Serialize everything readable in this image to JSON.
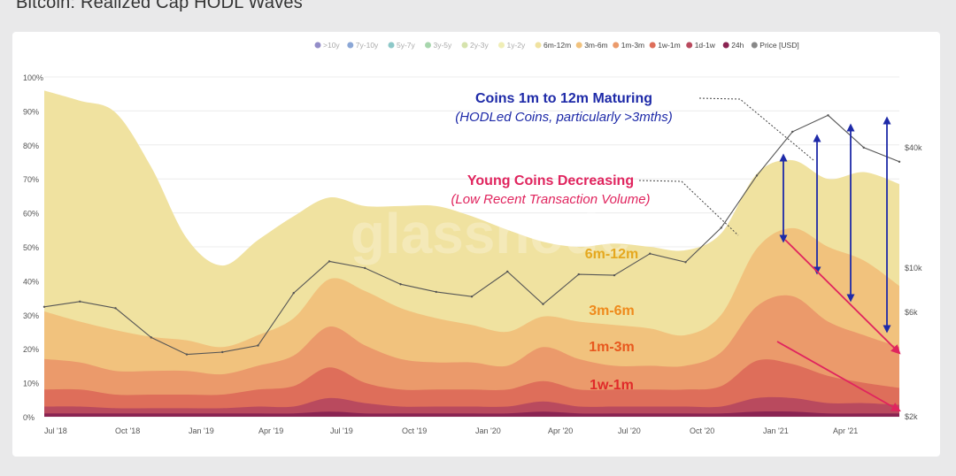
{
  "page": {
    "title": "Bitcoin: Realized Cap HODL Waves"
  },
  "watermark": "glassnode",
  "legend": [
    {
      "label": ">10y",
      "color": "#3b2f9a",
      "visible": false
    },
    {
      "label": "7y-10y",
      "color": "#2b5fb5",
      "visible": false
    },
    {
      "label": "5y-7y",
      "color": "#2f9a9a",
      "visible": false
    },
    {
      "label": "3y-5y",
      "color": "#5fb56a",
      "visible": false
    },
    {
      "label": "2y-3y",
      "color": "#b5cc6a",
      "visible": false
    },
    {
      "label": "1y-2y",
      "color": "#e3e07a",
      "visible": false
    },
    {
      "label": "6m-12m",
      "color": "#f0e2a0",
      "visible": true
    },
    {
      "label": "3m-6m",
      "color": "#f1c27d",
      "visible": true
    },
    {
      "label": "1m-3m",
      "color": "#eb9a6b",
      "visible": true
    },
    {
      "label": "1w-1m",
      "color": "#de6e5a",
      "visible": true
    },
    {
      "label": "1d-1w",
      "color": "#b94a5e",
      "visible": true
    },
    {
      "label": "24h",
      "color": "#8a2452",
      "visible": true
    },
    {
      "label": "Price [USD]",
      "color": "#888888",
      "visible": true
    }
  ],
  "annotations": {
    "maturing_title": "Coins 1m to 12m Maturing",
    "maturing_sub": "(HODLed Coins, particularly >3mths)",
    "young_title": "Young Coins Decreasing",
    "young_sub": "(Low Recent Transaction Volume)",
    "band_6m12m": "6m-12m",
    "band_3m6m": "3m-6m",
    "band_1m3m": "1m-3m",
    "band_1w1m": "1w-1m"
  },
  "colors": {
    "maturing": "#1e2aa8",
    "young": "#e0245e",
    "band_6m12m": "#e5a81f",
    "band_3m6m": "#ef8a1c",
    "band_1m3m": "#e8581e",
    "band_1w1m": "#e02a2a"
  },
  "chart_data": {
    "type": "area",
    "stacked": true,
    "x": [
      "2018-07-01",
      "2018-08-15",
      "2018-10-01",
      "2018-11-15",
      "2019-01-01",
      "2019-02-15",
      "2019-04-01",
      "2019-05-15",
      "2019-07-01",
      "2019-08-15",
      "2019-10-01",
      "2019-11-15",
      "2020-01-01",
      "2020-02-15",
      "2020-04-01",
      "2020-05-15",
      "2020-07-01",
      "2020-08-15",
      "2020-10-01",
      "2020-11-15",
      "2021-01-01",
      "2021-02-15",
      "2021-04-01",
      "2021-05-15",
      "2021-06-15"
    ],
    "x_tick_labels": [
      "Jul '18",
      "Oct '18",
      "Jan '19",
      "Apr '19",
      "Jul '19",
      "Oct '19",
      "Jan '20",
      "Apr '20",
      "Jul '20",
      "Oct '20",
      "Jan '21",
      "Apr '21"
    ],
    "y_left_ticks": [
      "0%",
      "10%",
      "20%",
      "30%",
      "40%",
      "50%",
      "60%",
      "70%",
      "80%",
      "90%",
      "100%"
    ],
    "y_right_ticks": [
      "$2k",
      "$6k",
      "$10k",
      "$40k"
    ],
    "ylim": [
      0,
      100
    ],
    "series": [
      {
        "name": "24h",
        "values": [
          1,
          1,
          1,
          1,
          1,
          1,
          1,
          1,
          1.5,
          1,
          1,
          1,
          1,
          1,
          1.5,
          1,
          1,
          1,
          1,
          1,
          1.5,
          1.5,
          1,
          1,
          1
        ]
      },
      {
        "name": "1d-1w",
        "values": [
          2,
          2,
          1.5,
          1.5,
          1.5,
          1.5,
          2,
          2,
          4,
          3,
          2,
          2,
          2,
          2,
          3,
          2,
          2,
          2,
          2,
          2,
          4,
          4,
          3,
          3,
          2.5
        ]
      },
      {
        "name": "1w-1m",
        "values": [
          5,
          5,
          4,
          4,
          4,
          4,
          5,
          6,
          9,
          6,
          5,
          5,
          5,
          5,
          6,
          5,
          5,
          5,
          5,
          6,
          11,
          10,
          8,
          6,
          5
        ]
      },
      {
        "name": "1m-3m",
        "values": [
          9,
          8,
          7,
          7,
          7,
          6,
          7,
          9,
          12,
          11,
          9,
          8,
          8,
          7,
          10,
          9,
          7,
          7,
          7,
          10,
          16,
          20,
          16,
          14,
          12
        ]
      },
      {
        "name": "3m-6m",
        "values": [
          14,
          12,
          12,
          10,
          9,
          8,
          9,
          11,
          14,
          16,
          15,
          13,
          11,
          10,
          9,
          11,
          12,
          11,
          9,
          11,
          17,
          20,
          22,
          22,
          18
        ]
      },
      {
        "name": "6m-12m",
        "values": [
          65,
          65,
          64,
          50,
          30,
          24,
          28,
          30,
          24,
          25,
          30,
          33,
          32,
          30,
          22,
          22,
          24,
          24,
          25,
          24,
          22,
          20,
          20,
          26,
          30
        ]
      }
    ],
    "price_usd": [
      6400,
      6800,
      6300,
      4500,
      3700,
      3800,
      4100,
      7500,
      10800,
      10000,
      8300,
      7600,
      7200,
      9600,
      6600,
      9300,
      9200,
      11800,
      10700,
      15900,
      29000,
      48000,
      58000,
      40000,
      34000
    ],
    "legend_position": "top-right",
    "grid": true
  }
}
